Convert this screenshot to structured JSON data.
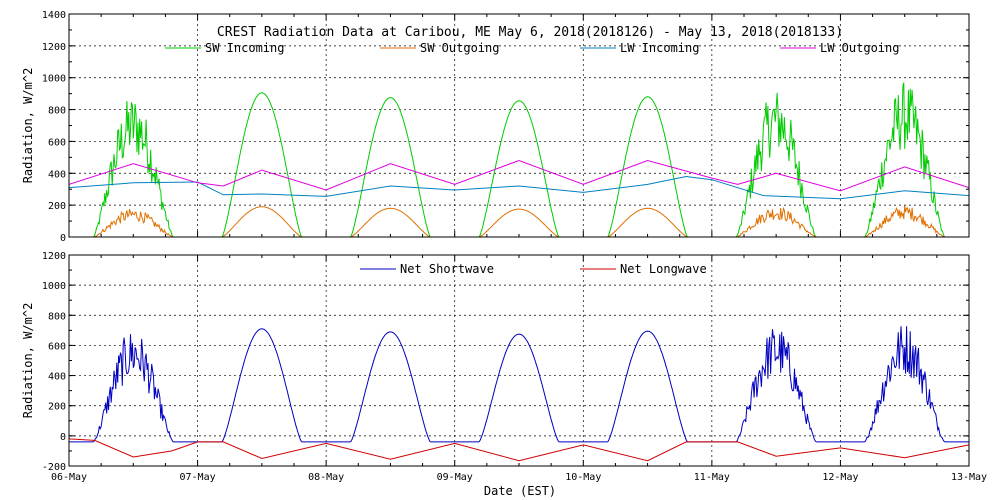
{
  "chart_data": {
    "type": "line",
    "title": "CREST Radiation Data at Caribou, ME   May  6, 2018(2018126) - May 13, 2018(2018133)",
    "xlabel": "Date (EST)",
    "x_ticks": [
      "06-May",
      "07-May",
      "08-May",
      "09-May",
      "10-May",
      "11-May",
      "12-May",
      "13-May"
    ],
    "x_range_days": [
      0,
      7
    ],
    "grid": true,
    "panels": [
      {
        "ylabel": "Radiation, W/m^2",
        "ylim": [
          0,
          1400
        ],
        "y_ticks": [
          0,
          200,
          400,
          600,
          800,
          1000,
          1200,
          1400
        ],
        "legend_placement": "top",
        "series": [
          {
            "name": "SW Incoming",
            "color": "#00cc00",
            "day_peaks": [
              900,
              905,
              875,
              855,
              880,
              940,
              980
            ],
            "noisy_days": [
              0,
              5,
              6
            ]
          },
          {
            "name": "SW Outgoing",
            "color": "#e07000",
            "day_peaks": [
              180,
              190,
              180,
              175,
              180,
              195,
              200
            ],
            "noisy_days": [
              0,
              5,
              6
            ]
          },
          {
            "name": "LW Incoming",
            "color": "#0080c0",
            "points": [
              [
                0,
                310
              ],
              [
                0.5,
                340
              ],
              [
                1,
                345
              ],
              [
                1.2,
                265
              ],
              [
                1.5,
                270
              ],
              [
                2,
                255
              ],
              [
                2.5,
                320
              ],
              [
                3,
                295
              ],
              [
                3.5,
                320
              ],
              [
                4,
                280
              ],
              [
                4.5,
                330
              ],
              [
                4.8,
                380
              ],
              [
                5,
                360
              ],
              [
                5.4,
                260
              ],
              [
                6,
                240
              ],
              [
                6.5,
                290
              ],
              [
                7,
                260
              ]
            ]
          },
          {
            "name": "LW Outgoing",
            "color": "#e000e0",
            "points": [
              [
                0,
                330
              ],
              [
                0.5,
                460
              ],
              [
                1,
                340
              ],
              [
                1.2,
                320
              ],
              [
                1.5,
                420
              ],
              [
                2,
                295
              ],
              [
                2.5,
                460
              ],
              [
                3,
                330
              ],
              [
                3.5,
                480
              ],
              [
                4,
                330
              ],
              [
                4.5,
                480
              ],
              [
                5,
                370
              ],
              [
                5.2,
                330
              ],
              [
                5.5,
                400
              ],
              [
                6,
                290
              ],
              [
                6.5,
                440
              ],
              [
                7,
                310
              ]
            ]
          }
        ]
      },
      {
        "ylabel": "Radiation, W/m^2",
        "ylim": [
          -200,
          1200
        ],
        "y_ticks": [
          -200,
          0,
          200,
          400,
          600,
          800,
          1000,
          1200
        ],
        "legend_placement": "top",
        "series": [
          {
            "name": "Net Shortwave",
            "color": "#0000c0",
            "day_peaks": [
              715,
              710,
              690,
              675,
              695,
              740,
              760
            ],
            "night_value": -40,
            "noisy_days": [
              0,
              5,
              6
            ]
          },
          {
            "name": "Net Longwave",
            "color": "#d00000",
            "points": [
              [
                0,
                -20
              ],
              [
                0.2,
                -30
              ],
              [
                0.5,
                -140
              ],
              [
                0.8,
                -100
              ],
              [
                1,
                -40
              ],
              [
                1.2,
                -40
              ],
              [
                1.5,
                -150
              ],
              [
                2,
                -50
              ],
              [
                2.5,
                -155
              ],
              [
                3,
                -50
              ],
              [
                3.5,
                -165
              ],
              [
                4,
                -60
              ],
              [
                4.5,
                -165
              ],
              [
                4.8,
                -40
              ],
              [
                5.2,
                -40
              ],
              [
                5.5,
                -135
              ],
              [
                6,
                -80
              ],
              [
                6.5,
                -145
              ],
              [
                7,
                -60
              ]
            ]
          }
        ]
      }
    ]
  }
}
